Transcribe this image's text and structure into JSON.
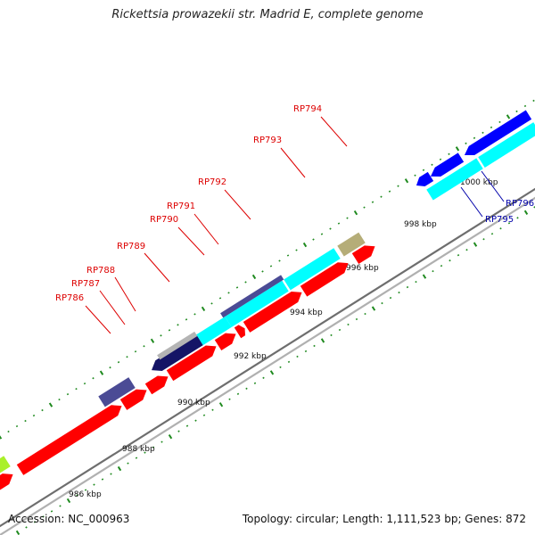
{
  "title": "Rickettsia prowazekii str. Madrid E, complete genome",
  "footer": {
    "accession": "Accession: NC_000963",
    "summary": "Topology: circular; Length: 1,111,523 bp; Genes: 872"
  },
  "colors": {
    "backbone": "#8c8c8c",
    "tick": "#1f8a1f",
    "red": "#ff0000",
    "cyan": "#00ffff",
    "purple": "#4b4b95",
    "navy": "#141466",
    "gray": "#b4b4b4",
    "khaki": "#b5ad78",
    "blue": "#0000ff",
    "lime": "#aaf02a",
    "label_red": "#dd0000",
    "label_blue": "#0000aa"
  },
  "scale": {
    "unit": "kbp",
    "labels": [
      "986 kbp",
      "988 kbp",
      "990 kbp",
      "992 kbp",
      "994 kbp",
      "996 kbp",
      "998 kbp",
      "1000 kbp"
    ]
  },
  "genes": [
    {
      "label": "RP786",
      "color": "label_red"
    },
    {
      "label": "RP787",
      "color": "label_red"
    },
    {
      "label": "RP788",
      "color": "label_red"
    },
    {
      "label": "RP789",
      "color": "label_red"
    },
    {
      "label": "RP790",
      "color": "label_red"
    },
    {
      "label": "RP791",
      "color": "label_red"
    },
    {
      "label": "RP792",
      "color": "label_red"
    },
    {
      "label": "RP793",
      "color": "label_red"
    },
    {
      "label": "RP794",
      "color": "label_red"
    },
    {
      "label": "RP795",
      "color": "label_blue"
    },
    {
      "label": "RP796",
      "color": "label_blue"
    }
  ]
}
